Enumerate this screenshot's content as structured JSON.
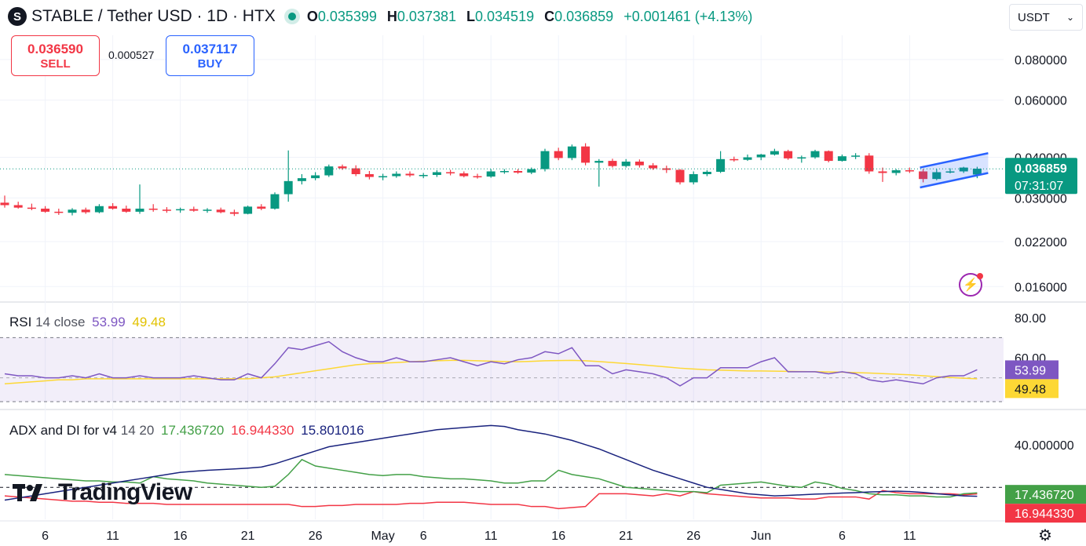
{
  "header": {
    "symbol_icon": "S",
    "title": "STABLE / Tether USD · 1D · HTX",
    "open_label": "O",
    "open": "0.035399",
    "high_label": "H",
    "high": "0.037381",
    "low_label": "L",
    "low": "0.034519",
    "close_label": "C",
    "close": "0.036859",
    "change": "+0.001461 (+4.13%)"
  },
  "trade": {
    "sell_price": "0.036590",
    "sell_label": "SELL",
    "spread": "0.000527",
    "buy_price": "0.037117",
    "buy_label": "BUY"
  },
  "currency": {
    "value": "USDT",
    "icon": "chevron-down-icon"
  },
  "colors": {
    "up": "#089981",
    "down": "#f23645",
    "rsi": "#7e57c2",
    "rsi_ma": "#fdd835",
    "adx": "#1a237e",
    "di_plus": "#43a047",
    "di_minus": "#f23645",
    "channel": "#2962ff"
  },
  "price_axis": {
    "ticks": [
      {
        "label": "0.080000",
        "value": 0.08
      },
      {
        "label": "0.060000",
        "value": 0.06
      },
      {
        "label": "0.040000",
        "value": 0.04
      },
      {
        "label": "0.030000",
        "value": 0.03
      },
      {
        "label": "0.022000",
        "value": 0.022
      },
      {
        "label": "0.016000",
        "value": 0.016
      }
    ],
    "last_price": "0.036859",
    "countdown": "07:31:07"
  },
  "rsi": {
    "label": "RSI",
    "params": "14 close",
    "value": "53.99",
    "ma_value": "49.48",
    "axis": [
      "80.00",
      "60.00"
    ]
  },
  "adx": {
    "label": "ADX and DI for v4",
    "params": "14 20",
    "di_plus": "17.436720",
    "di_minus": "16.944330",
    "adx": "15.801016",
    "axis": [
      "40.000000"
    ]
  },
  "time_axis": [
    "6",
    "11",
    "16",
    "21",
    "26",
    "May",
    "6",
    "11",
    "16",
    "21",
    "26",
    "Jun",
    "6",
    "11"
  ],
  "logo_text": "TradingView",
  "chart_data": {
    "type": "candlestick",
    "title": "STABLE / Tether USD · 1D · HTX",
    "scale": "log",
    "ylim": [
      0.0145,
      0.095
    ],
    "candles": [
      [
        0.029,
        0.0305,
        0.028,
        0.0285
      ],
      [
        0.0285,
        0.0292,
        0.0278,
        0.028
      ],
      [
        0.028,
        0.0288,
        0.0275,
        0.0278
      ],
      [
        0.0278,
        0.0283,
        0.027,
        0.0272
      ],
      [
        0.0272,
        0.0278,
        0.0266,
        0.027
      ],
      [
        0.027,
        0.0279,
        0.0265,
        0.0276
      ],
      [
        0.0276,
        0.028,
        0.0268,
        0.0271
      ],
      [
        0.0271,
        0.0287,
        0.0269,
        0.0283
      ],
      [
        0.0283,
        0.0289,
        0.0276,
        0.0278
      ],
      [
        0.0278,
        0.0284,
        0.027,
        0.0272
      ],
      [
        0.0272,
        0.033,
        0.0268,
        0.0278
      ],
      [
        0.0278,
        0.0287,
        0.0272,
        0.0276
      ],
      [
        0.0276,
        0.0281,
        0.027,
        0.0275
      ],
      [
        0.0275,
        0.028,
        0.027,
        0.0277
      ],
      [
        0.0277,
        0.0282,
        0.0272,
        0.0274
      ],
      [
        0.0274,
        0.0279,
        0.027,
        0.0276
      ],
      [
        0.0276,
        0.028,
        0.0269,
        0.0271
      ],
      [
        0.0271,
        0.0276,
        0.0264,
        0.0268
      ],
      [
        0.0268,
        0.0284,
        0.0267,
        0.0282
      ],
      [
        0.0282,
        0.0287,
        0.0275,
        0.0278
      ],
      [
        0.0278,
        0.0312,
        0.0276,
        0.0308
      ],
      [
        0.0308,
        0.042,
        0.0292,
        0.0338
      ],
      [
        0.0338,
        0.0355,
        0.033,
        0.0345
      ],
      [
        0.0345,
        0.036,
        0.034,
        0.0352
      ],
      [
        0.0352,
        0.038,
        0.0348,
        0.0375
      ],
      [
        0.0375,
        0.038,
        0.0366,
        0.037
      ],
      [
        0.037,
        0.0378,
        0.035,
        0.0355
      ],
      [
        0.0355,
        0.0363,
        0.0342,
        0.0348
      ],
      [
        0.0348,
        0.0356,
        0.034,
        0.035
      ],
      [
        0.035,
        0.0362,
        0.0346,
        0.0356
      ],
      [
        0.0356,
        0.0362,
        0.0348,
        0.0352
      ],
      [
        0.0352,
        0.0358,
        0.0345,
        0.0353
      ],
      [
        0.0353,
        0.0365,
        0.0348,
        0.036
      ],
      [
        0.036,
        0.0366,
        0.0352,
        0.0357
      ],
      [
        0.0357,
        0.0362,
        0.0347,
        0.035
      ],
      [
        0.035,
        0.0356,
        0.0344,
        0.0349
      ],
      [
        0.0349,
        0.0368,
        0.0346,
        0.0362
      ],
      [
        0.0362,
        0.0368,
        0.0356,
        0.0363
      ],
      [
        0.0363,
        0.0368,
        0.0356,
        0.0359
      ],
      [
        0.0359,
        0.0372,
        0.0355,
        0.0368
      ],
      [
        0.0368,
        0.0425,
        0.0362,
        0.0418
      ],
      [
        0.0418,
        0.0428,
        0.0392,
        0.0398
      ],
      [
        0.0398,
        0.0438,
        0.0392,
        0.0432
      ],
      [
        0.0432,
        0.0442,
        0.0378,
        0.0385
      ],
      [
        0.0385,
        0.0395,
        0.0325,
        0.039
      ],
      [
        0.039,
        0.0396,
        0.0372,
        0.0376
      ],
      [
        0.0376,
        0.0395,
        0.0372,
        0.0388
      ],
      [
        0.0388,
        0.0394,
        0.0372,
        0.0378
      ],
      [
        0.0378,
        0.0384,
        0.0366,
        0.037
      ],
      [
        0.037,
        0.0377,
        0.0358,
        0.0366
      ],
      [
        0.0366,
        0.0368,
        0.033,
        0.0335
      ],
      [
        0.0335,
        0.0362,
        0.033,
        0.0355
      ],
      [
        0.0355,
        0.0365,
        0.035,
        0.0361
      ],
      [
        0.0361,
        0.0418,
        0.0358,
        0.0395
      ],
      [
        0.0395,
        0.0402,
        0.0388,
        0.0393
      ],
      [
        0.0393,
        0.0408,
        0.039,
        0.04
      ],
      [
        0.04,
        0.041,
        0.0392,
        0.0408
      ],
      [
        0.0408,
        0.0425,
        0.0405,
        0.0418
      ],
      [
        0.0418,
        0.0422,
        0.0393,
        0.0397
      ],
      [
        0.0397,
        0.0405,
        0.0385,
        0.04
      ],
      [
        0.04,
        0.0422,
        0.0396,
        0.0418
      ],
      [
        0.0418,
        0.042,
        0.0386,
        0.039
      ],
      [
        0.039,
        0.0408,
        0.0388,
        0.0403
      ],
      [
        0.0403,
        0.0412,
        0.0395,
        0.0405
      ],
      [
        0.0405,
        0.0412,
        0.0356,
        0.0362
      ],
      [
        0.0362,
        0.0372,
        0.0336,
        0.0358
      ],
      [
        0.0358,
        0.0368,
        0.0352,
        0.0365
      ],
      [
        0.0365,
        0.0372,
        0.0358,
        0.0362
      ],
      [
        0.0362,
        0.0368,
        0.0335,
        0.0343
      ],
      [
        0.0343,
        0.0368,
        0.034,
        0.036
      ],
      [
        0.036,
        0.037,
        0.0357,
        0.0362
      ],
      [
        0.0362,
        0.0374,
        0.0358,
        0.0372
      ],
      [
        0.0354,
        0.0374,
        0.0345,
        0.0369
      ]
    ],
    "channel": {
      "start_index": 68,
      "end_index": 72,
      "upper": [
        0.0372,
        0.0412
      ],
      "lower": [
        0.0323,
        0.0358
      ]
    },
    "rsi_values": [
      52,
      51,
      51,
      50,
      50,
      51,
      50,
      52,
      50,
      50,
      51,
      50,
      50,
      50,
      51,
      50,
      49,
      49,
      52,
      50,
      57,
      65,
      64,
      66,
      68,
      63,
      60,
      58,
      58,
      60,
      58,
      58,
      59,
      60,
      58,
      56,
      58,
      57,
      59,
      60,
      63,
      62,
      65,
      56,
      56,
      52,
      54,
      53,
      52,
      50,
      46,
      50,
      50,
      55,
      55,
      55,
      58,
      60,
      53,
      53,
      53,
      52,
      53,
      52,
      49,
      48,
      49,
      48,
      47,
      50,
      51,
      51,
      54
    ],
    "rsi_ma_values": [
      47,
      47.5,
      48,
      48.5,
      49,
      49,
      49.5,
      49.5,
      49.5,
      49.5,
      49.5,
      49.5,
      49.5,
      49.5,
      49.5,
      49.5,
      49.5,
      49.5,
      49.5,
      50,
      50.5,
      51.5,
      52.5,
      53.5,
      54.5,
      55.5,
      56.5,
      57,
      57.3,
      57.6,
      58,
      58.3,
      58.5,
      58.7,
      58.7,
      58.5,
      58.3,
      58.1,
      58,
      58.2,
      58.5,
      58.6,
      58.7,
      58.5,
      58.1,
      57.6,
      57.1,
      56.6,
      56,
      55.4,
      54.8,
      54.4,
      54,
      53.8,
      53.6,
      53.4,
      53.4,
      53.3,
      53.2,
      53.1,
      53,
      52.9,
      52.8,
      52.6,
      52.4,
      52.1,
      51.8,
      51.5,
      51,
      50.6,
      50.2,
      49.8,
      49.48
    ],
    "rsi_ylim": [
      35,
      85
    ],
    "adx_values": [
      14,
      15,
      16,
      17,
      18,
      19,
      20,
      21,
      22,
      23,
      24,
      25,
      26,
      27,
      27.5,
      28,
      28.3,
      28.6,
      29,
      29.5,
      31,
      33,
      35,
      37,
      39,
      40,
      41,
      42,
      43,
      44,
      45,
      46,
      47,
      47.5,
      48,
      48.5,
      49,
      48.5,
      47,
      46,
      45,
      43.5,
      42,
      40,
      38,
      35.5,
      33,
      30.5,
      28,
      26,
      24,
      22,
      20,
      19,
      18,
      17,
      16.5,
      16,
      16.2,
      16.5,
      16.8,
      17,
      17.3,
      17.5,
      17.8,
      18,
      18.2,
      18,
      17.6,
      17,
      16.5,
      16,
      15.8
    ],
    "di_plus_values": [
      26,
      25.5,
      25,
      24.5,
      24,
      23.5,
      23,
      23,
      22.5,
      22.5,
      22,
      25,
      24,
      23.5,
      23,
      22,
      21.5,
      21,
      20.5,
      20,
      20.5,
      26,
      33,
      30,
      29,
      28,
      27,
      26,
      25.5,
      26,
      26,
      25,
      24.5,
      24,
      24,
      23.5,
      23,
      22,
      22,
      23,
      23,
      28,
      26,
      25,
      24,
      22,
      20,
      19.5,
      19,
      18.5,
      18,
      18,
      17.5,
      21,
      21.5,
      22,
      22.5,
      21.5,
      20.5,
      20,
      22.5,
      21.5,
      19.5,
      18.5,
      17,
      16.5,
      16.5,
      16,
      16,
      15.5,
      15.5,
      17,
      17.4
    ],
    "di_minus_values": [
      16,
      15.5,
      15,
      14.5,
      14,
      13.5,
      13.5,
      13,
      13,
      12.5,
      12.5,
      12.5,
      12,
      12,
      12,
      12,
      12,
      12,
      12,
      12,
      12,
      12,
      11,
      11,
      11.5,
      11.5,
      12,
      12,
      12,
      12,
      12.5,
      12.5,
      13,
      13,
      13,
      12.5,
      12,
      12,
      12,
      11,
      11,
      10,
      10.5,
      11,
      17,
      17,
      17,
      16.5,
      16,
      17,
      16,
      18,
      17,
      16.5,
      16,
      15.5,
      15,
      15,
      15,
      14.5,
      14.5,
      15.5,
      15.5,
      15.5,
      14.5,
      18.5,
      17.5,
      17,
      17,
      17,
      17,
      16.5,
      16.9
    ],
    "adx_ylim": [
      5,
      55
    ]
  }
}
